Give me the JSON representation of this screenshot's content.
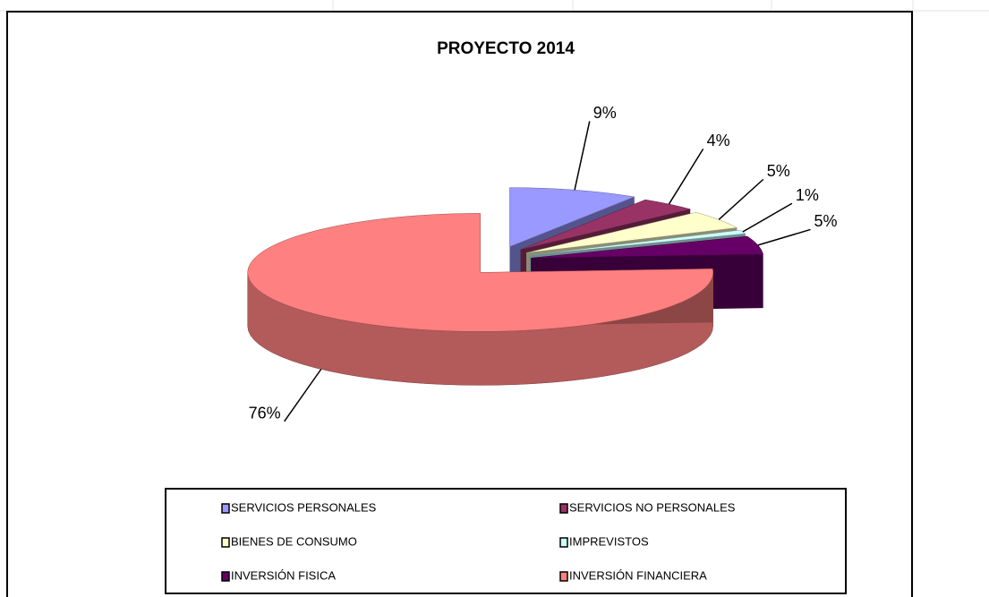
{
  "chart_data": {
    "type": "pie",
    "title": "PROYECTO 2014",
    "categories": [
      "SERVICIOS PERSONALES",
      "SERVICIOS NO PERSONALES",
      "BIENES DE CONSUMO",
      "IMPREVISTOS",
      "INVERSIÓN FISICA",
      "INVERSIÓN FINANCIERA"
    ],
    "values": [
      9,
      4,
      5,
      1,
      5,
      76
    ],
    "value_labels": [
      "9%",
      "4%",
      "5%",
      "1%",
      "5%",
      "76%"
    ],
    "colors": [
      "#9999ff",
      "#993366",
      "#ffffcc",
      "#ccffff",
      "#660066",
      "#ff8080"
    ],
    "legend": "bottom"
  }
}
